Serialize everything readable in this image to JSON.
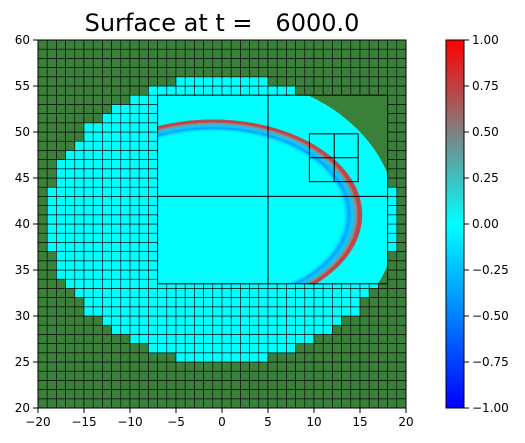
{
  "chart_data": {
    "type": "heatmap",
    "title": "Surface at t =   6000.0",
    "xlabel": "",
    "ylabel": "",
    "xlim": [
      -20,
      20
    ],
    "ylim": [
      20,
      60
    ],
    "x_ticks": [
      -20,
      -15,
      -10,
      -5,
      0,
      5,
      10,
      15,
      20
    ],
    "y_ticks": [
      20,
      25,
      30,
      35,
      40,
      45,
      50,
      55,
      60
    ],
    "colorbar": {
      "vmin": -1.0,
      "vmax": 1.0,
      "ticks": [
        "1.00",
        "0.75",
        "0.50",
        "0.25",
        "0.00",
        "−0.25",
        "−0.50",
        "−0.75",
        "−1.00"
      ],
      "tick_values": [
        1.0,
        0.75,
        0.5,
        0.25,
        0.0,
        -0.25,
        -0.5,
        -0.75,
        -1.0
      ],
      "colormap_stops": [
        "#0000ff",
        "#0080ff",
        "#00ffff",
        "#808080",
        "#ff0000"
      ]
    },
    "land_color": "#3a7f3a",
    "water_coarse_color": "#00ffff",
    "coarse_cell_size": 1,
    "lake": {
      "center": [
        0.0,
        40.5
      ],
      "radius_x": 19.0,
      "radius_y": 15.5
    },
    "fine_patch": {
      "x": [
        -7,
        18
      ],
      "y": [
        33.5,
        54
      ]
    },
    "patch_grid": {
      "x": [
        -7,
        5,
        18
      ],
      "y": [
        33.5,
        43,
        54
      ]
    },
    "fine_patch_2": {
      "x": [
        9.5,
        14.8
      ],
      "y": [
        44.6,
        49.8
      ],
      "xdiv": 12.2,
      "ydiv": 47.2
    },
    "wave_ring": {
      "center": [
        -1.0,
        41.0
      ],
      "radius_x": 16.3,
      "radius_y": 10.4,
      "peak": 0.55,
      "trough": -0.45
    }
  }
}
